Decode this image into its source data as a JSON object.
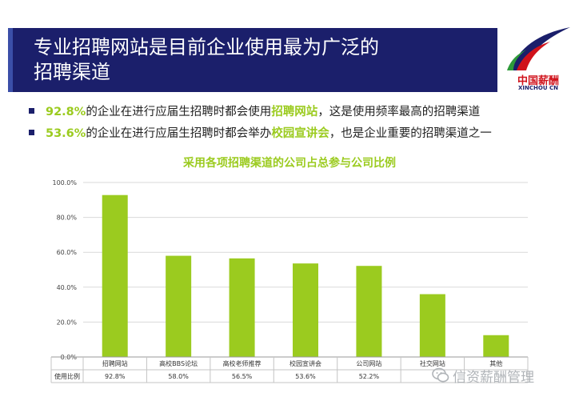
{
  "header": {
    "title": "专业招聘网站是目前企业使用最为广泛的招聘渠道",
    "title_line1": "专业招聘网站是目前企业使用最为广泛的",
    "title_line2": "招聘渠道"
  },
  "logo": {
    "text_cn": "中国薪酬",
    "text_en": "XINCHOU CN",
    "icon": "swoosh-logo-icon"
  },
  "bullets": [
    {
      "pct": "92.8%",
      "pre": "的企业在进行应届生招聘时都会使用",
      "key": "招聘网站",
      "post": "，这是使用频率最高的招聘渠道"
    },
    {
      "pct": "53.6%",
      "pre": "的企业在进行应届生招聘时都会举办",
      "key": "校园宣讲会",
      "post": "，也是企业重要的招聘渠道之一"
    }
  ],
  "watermark": {
    "text": "信资薪酬管理",
    "icon": "wechat-icon"
  },
  "colors": {
    "bar": "#9bcb1f",
    "highlight": "#9bcb1f",
    "title_bg": "#1b1f6b"
  },
  "chart_data": {
    "type": "bar",
    "title": "采用各项招聘渠道的公司占总参与公司比例",
    "categories": [
      "招聘网站",
      "高校BBS论坛",
      "高校老师推荐",
      "校园宣讲会",
      "公司网站",
      "社交网站",
      "其他"
    ],
    "values": [
      92.8,
      58.0,
      56.5,
      53.6,
      52.2,
      36.0,
      12.5
    ],
    "value_labels": [
      "92.8%",
      "58.0%",
      "56.5%",
      "53.6%",
      "52.2%",
      "",
      ""
    ],
    "ylim": [
      0,
      100
    ],
    "yticks": [
      "0.0%",
      "20.0%",
      "40.0%",
      "60.0%",
      "80.0%",
      "100.0%"
    ],
    "ytick_values": [
      0,
      20,
      40,
      60,
      80,
      100
    ],
    "table_row_label": "使用比例",
    "grid": true,
    "legend": "none"
  }
}
